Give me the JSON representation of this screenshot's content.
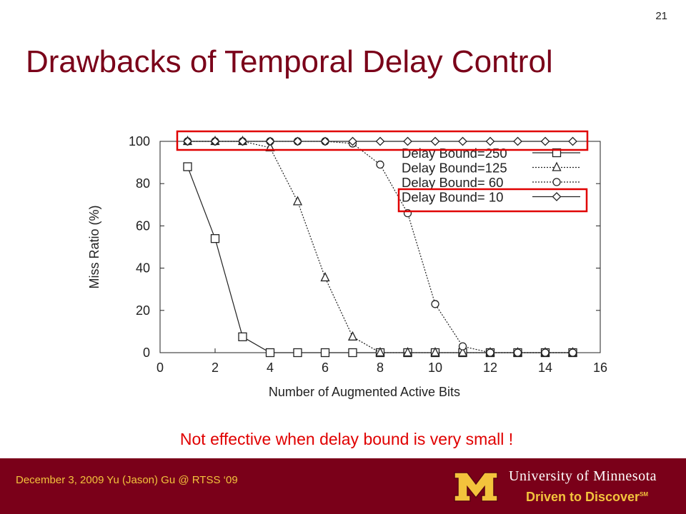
{
  "slide": {
    "number": "21",
    "title": "Drawbacks of Temporal Delay Control",
    "note": "Not effective when delay bound is very small !"
  },
  "footer": {
    "left_text": "December 3, 2009 Yu (Jason) Gu @ RTSS ‘09",
    "university": "University of Minnesota",
    "tagline": "Driven to Discover",
    "tagline_mark": "SM",
    "colors": {
      "maroon": "#7a0019",
      "gold": "#f3c33c"
    }
  },
  "chart_data": {
    "type": "line",
    "title": "",
    "xlabel": "Number of Augmented Active Bits",
    "ylabel": "Miss Ratio (%)",
    "xlim": [
      0,
      16
    ],
    "ylim": [
      0,
      100
    ],
    "xticks": [
      0,
      2,
      4,
      6,
      8,
      10,
      12,
      14,
      16
    ],
    "yticks": [
      0,
      20,
      40,
      60,
      80,
      100
    ],
    "grid": false,
    "legend_position": "top-right",
    "x": [
      1,
      2,
      3,
      4,
      5,
      6,
      7,
      8,
      9,
      10,
      11,
      12,
      13,
      14,
      15
    ],
    "series": [
      {
        "name": "Delay Bound=250",
        "marker": "square",
        "line": "solid",
        "values": [
          88,
          54,
          7.5,
          0,
          0,
          0,
          0,
          0,
          0,
          0,
          0,
          0,
          0,
          0,
          0
        ]
      },
      {
        "name": "Delay Bound=125",
        "marker": "triangle",
        "line": "dotted",
        "values": [
          100,
          100,
          100,
          97,
          71.5,
          35.5,
          7.5,
          0,
          0,
          0,
          0,
          0,
          0,
          0,
          0
        ]
      },
      {
        "name": "Delay Bound=  60",
        "marker": "circle",
        "line": "dotted",
        "values": [
          100,
          100,
          100,
          100,
          100,
          100,
          99,
          89,
          66,
          23,
          3,
          0,
          0,
          0,
          0
        ]
      },
      {
        "name": "Delay Bound=  10",
        "marker": "diamond",
        "line": "solid",
        "values": [
          100,
          100,
          100,
          100,
          100,
          100,
          100,
          100,
          100,
          100,
          100,
          100,
          100,
          100,
          100
        ]
      }
    ],
    "highlights": [
      {
        "target": "series 4 data line",
        "color": "#e00000"
      },
      {
        "target": "series 4 legend entry",
        "color": "#e00000"
      }
    ]
  }
}
